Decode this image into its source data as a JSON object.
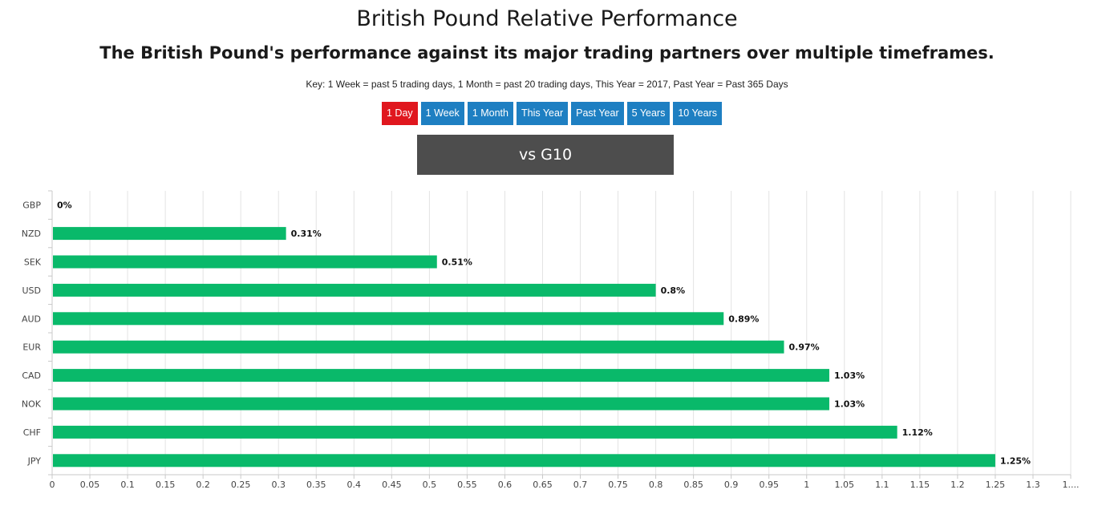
{
  "header": {
    "title": "British Pound Relative Performance",
    "subtitle": "The British Pound's performance against its major trading partners over multiple timeframes.",
    "key_text": "Key: 1 Week = past 5 trading days, 1 Month = past 20 trading days, This Year = 2017, Past Year = Past 365 Days"
  },
  "timeframes": [
    {
      "label": "1 Day",
      "active": true
    },
    {
      "label": "1 Week",
      "active": false
    },
    {
      "label": "1 Month",
      "active": false
    },
    {
      "label": "This Year",
      "active": false
    },
    {
      "label": "Past Year",
      "active": false
    },
    {
      "label": "5 Years",
      "active": false
    },
    {
      "label": "10 Years",
      "active": false
    }
  ],
  "comparison_label": "vs G10",
  "colors": {
    "bar": "#09b96a",
    "active_button": "#e0171e",
    "button": "#1e7fc2",
    "vs_box": "#4d4d4d"
  },
  "chart_data": {
    "type": "bar",
    "orientation": "horizontal",
    "categories": [
      "GBP",
      "NZD",
      "SEK",
      "USD",
      "AUD",
      "EUR",
      "CAD",
      "NOK",
      "CHF",
      "JPY"
    ],
    "values": [
      0,
      0.31,
      0.51,
      0.8,
      0.89,
      0.97,
      1.03,
      1.03,
      1.12,
      1.25
    ],
    "data_labels": [
      "0%",
      "0.31%",
      "0.51%",
      "0.8%",
      "0.89%",
      "0.97%",
      "1.03%",
      "1.03%",
      "1.12%",
      "1.25%"
    ],
    "x_ticks": [
      "0",
      "0.05",
      "0.1",
      "0.15",
      "0.2",
      "0.25",
      "0.3",
      "0.35",
      "0.4",
      "0.45",
      "0.5",
      "0.55",
      "0.6",
      "0.65",
      "0.7",
      "0.75",
      "0.8",
      "0.85",
      "0.9",
      "0.95",
      "1",
      "1.05",
      "1.1",
      "1.15",
      "1.2",
      "1.25",
      "1.3",
      "1...."
    ],
    "xlim": [
      0,
      1.35
    ],
    "grid": true
  }
}
